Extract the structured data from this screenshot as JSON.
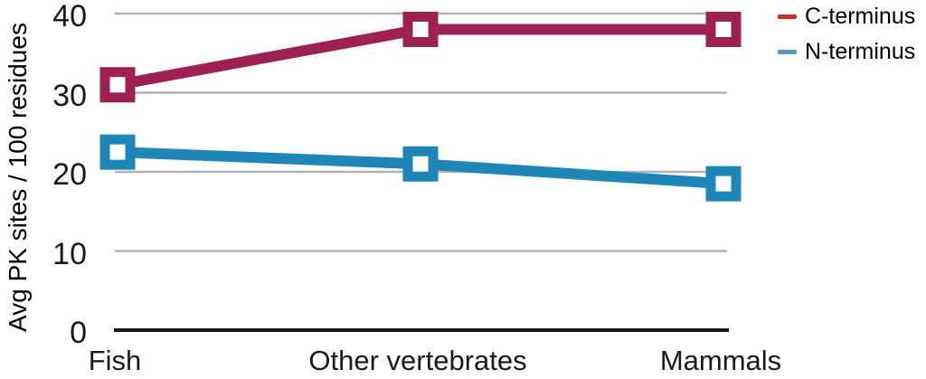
{
  "figure": {
    "ylabel": "Avg PK sites / 100 residues",
    "legend": [
      {
        "label": "C-terminus",
        "color": "#d02b24"
      },
      {
        "label": "N-terminus",
        "color": "#4e9ab9"
      }
    ]
  },
  "chart_data": {
    "type": "line",
    "categories": [
      "Fish",
      "Other vertebrates",
      "Mammals"
    ],
    "series": [
      {
        "name": "C-terminus",
        "color": "#9e2154",
        "values": [
          31,
          38,
          38
        ]
      },
      {
        "name": "N-terminus",
        "color": "#1e87b8",
        "values": [
          22.5,
          21,
          18.5
        ]
      }
    ],
    "title": "",
    "xlabel": "",
    "ylabel": "Avg PK sites / 100 residues",
    "ylim": [
      0,
      40
    ],
    "yticks": [
      0,
      10,
      20,
      30,
      40
    ],
    "grid": true,
    "legend_position": "top-right",
    "marker": "open-square",
    "colors": {
      "gridline": "#b3b3b3",
      "axis": "#1a1a1a",
      "text": "#000000"
    }
  }
}
